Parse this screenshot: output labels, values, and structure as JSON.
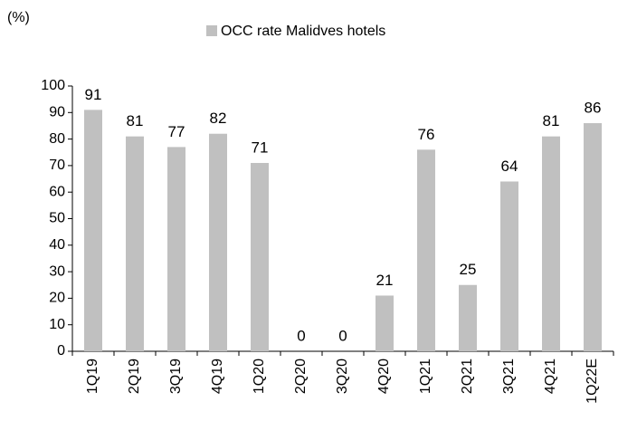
{
  "chart_data": {
    "type": "bar",
    "y_label": "(%)",
    "categories": [
      "1Q19",
      "2Q19",
      "3Q19",
      "4Q19",
      "1Q20",
      "2Q20",
      "3Q20",
      "4Q20",
      "1Q21",
      "2Q21",
      "3Q21",
      "4Q21",
      "1Q22E"
    ],
    "series": [
      {
        "name": "OCC rate Malidves hotels",
        "color": "#c0c0c0",
        "values": [
          91,
          81,
          77,
          82,
          71,
          0,
          0,
          21,
          76,
          25,
          64,
          81,
          86
        ]
      }
    ],
    "ylim": [
      0,
      100
    ],
    "yticks": [
      0,
      10,
      20,
      30,
      40,
      50,
      60,
      70,
      80,
      90,
      100
    ],
    "grid": false,
    "legend": "top",
    "data_labels": true
  }
}
